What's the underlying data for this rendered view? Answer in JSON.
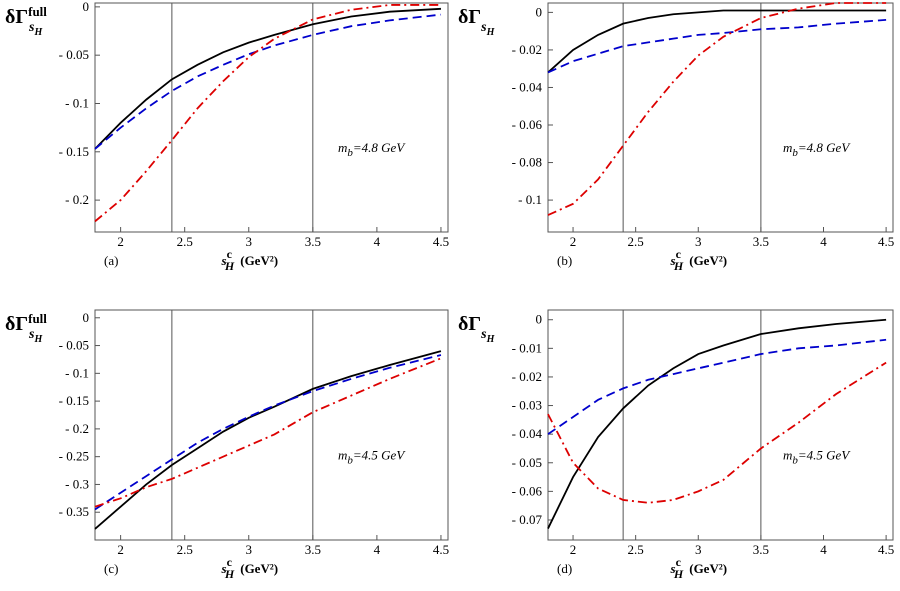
{
  "chart_data": [
    {
      "type": "line",
      "label": "(a)",
      "y_label": {
        "main": "δΓ",
        "sub": "s",
        "subsub": "H",
        "sup": "full"
      },
      "x_label": {
        "main": "s",
        "sub": "H",
        "sup": "c",
        "unit": "(GeV²)"
      },
      "annotation": {
        "main": "m",
        "sub": "b",
        "rest": "=4.8 GeV"
      },
      "xlim": [
        1.8,
        4.555
      ],
      "ylim": [
        -0.233,
        0.004
      ],
      "xticks": [
        2,
        2.5,
        3,
        3.5,
        4,
        4.5
      ],
      "yticks": [
        0,
        {
          "value": -0.05,
          "label": "- 0.05"
        },
        {
          "value": -0.1,
          "label": "- 0.1"
        },
        {
          "value": -0.15,
          "label": "- 0.15"
        },
        {
          "value": -0.2,
          "label": "- 0.2"
        }
      ],
      "vlines": [
        2.4,
        3.5
      ],
      "x": [
        1.8,
        2,
        2.2,
        2.4,
        2.6,
        2.8,
        3,
        3.2,
        3.5,
        3.8,
        4.1,
        4.5
      ],
      "series": [
        {
          "color": "#000000",
          "dash": "solid",
          "values": [
            -0.147,
            -0.12,
            -0.096,
            -0.075,
            -0.06,
            -0.047,
            -0.037,
            -0.029,
            -0.018,
            -0.01,
            -0.005,
            -0.002
          ]
        },
        {
          "color": "#0000cc",
          "dash": "dashed",
          "values": [
            -0.147,
            -0.125,
            -0.105,
            -0.087,
            -0.072,
            -0.06,
            -0.049,
            -0.04,
            -0.029,
            -0.02,
            -0.014,
            -0.008
          ]
        },
        {
          "color": "#dd0000",
          "dash": "dashdot",
          "values": [
            -0.222,
            -0.2,
            -0.17,
            -0.138,
            -0.105,
            -0.077,
            -0.052,
            -0.033,
            -0.013,
            -0.003,
            0.002,
            0.002
          ]
        }
      ]
    },
    {
      "type": "line",
      "label": "(b)",
      "y_label": {
        "main": "δΓ",
        "sub": "s",
        "subsub": "H"
      },
      "x_label": {
        "main": "s",
        "sub": "H",
        "sup": "c",
        "unit": "(GeV²)"
      },
      "annotation": {
        "main": "m",
        "sub": "b",
        "rest": "=4.8 GeV"
      },
      "xlim": [
        1.8,
        4.555
      ],
      "ylim": [
        -0.117,
        0.005
      ],
      "xticks": [
        2,
        2.5,
        3,
        3.5,
        4,
        4.5
      ],
      "yticks": [
        0,
        {
          "value": -0.02,
          "label": "- 0.02"
        },
        {
          "value": -0.04,
          "label": "- 0.04"
        },
        {
          "value": -0.06,
          "label": "- 0.06"
        },
        {
          "value": -0.08,
          "label": "- 0.08"
        },
        {
          "value": -0.1,
          "label": "- 0.1"
        }
      ],
      "vlines": [
        2.4,
        3.5
      ],
      "x": [
        1.8,
        2,
        2.2,
        2.4,
        2.6,
        2.8,
        3,
        3.2,
        3.5,
        3.8,
        4.1,
        4.5
      ],
      "series": [
        {
          "color": "#000000",
          "dash": "solid",
          "values": [
            -0.032,
            -0.02,
            -0.012,
            -0.006,
            -0.003,
            -0.001,
            0,
            0.001,
            0.001,
            0.001,
            0.001,
            0.001
          ]
        },
        {
          "color": "#0000cc",
          "dash": "dashed",
          "values": [
            -0.032,
            -0.026,
            -0.022,
            -0.018,
            -0.016,
            -0.014,
            -0.012,
            -0.011,
            -0.009,
            -0.008,
            -0.006,
            -0.004
          ]
        },
        {
          "color": "#dd0000",
          "dash": "dashdot",
          "values": [
            -0.108,
            -0.102,
            -0.089,
            -0.071,
            -0.053,
            -0.037,
            -0.023,
            -0.013,
            -0.003,
            0.002,
            0.005,
            0.005
          ]
        }
      ]
    },
    {
      "type": "line",
      "label": "(c)",
      "y_label": {
        "main": "δΓ",
        "sub": "s",
        "subsub": "H",
        "sup": "full"
      },
      "x_label": {
        "main": "s",
        "sub": "H",
        "sup": "c",
        "unit": "(GeV²)"
      },
      "annotation": {
        "main": "m",
        "sub": "b",
        "rest": "=4.5 GeV"
      },
      "xlim": [
        1.8,
        4.555
      ],
      "ylim": [
        -0.4,
        0.014
      ],
      "xticks": [
        2,
        2.5,
        3,
        3.5,
        4,
        4.5
      ],
      "yticks": [
        0,
        {
          "value": -0.05,
          "label": "- 0.05"
        },
        {
          "value": -0.1,
          "label": "- 0.1"
        },
        {
          "value": -0.15,
          "label": "- 0.15"
        },
        {
          "value": -0.2,
          "label": "- 0.2"
        },
        {
          "value": -0.25,
          "label": "- 0.25"
        },
        {
          "value": -0.3,
          "label": "- 0.3"
        },
        {
          "value": -0.35,
          "label": "- 0.35"
        }
      ],
      "vlines": [
        2.4,
        3.5
      ],
      "x": [
        1.8,
        2,
        2.2,
        2.4,
        2.6,
        2.8,
        3,
        3.2,
        3.5,
        3.8,
        4.1,
        4.5
      ],
      "series": [
        {
          "color": "#000000",
          "dash": "solid",
          "values": [
            -0.38,
            -0.34,
            -0.3,
            -0.265,
            -0.235,
            -0.205,
            -0.18,
            -0.16,
            -0.128,
            -0.105,
            -0.085,
            -0.06
          ]
        },
        {
          "color": "#0000cc",
          "dash": "dashed",
          "values": [
            -0.345,
            -0.315,
            -0.285,
            -0.255,
            -0.225,
            -0.2,
            -0.178,
            -0.158,
            -0.132,
            -0.11,
            -0.09,
            -0.067
          ]
        },
        {
          "color": "#dd0000",
          "dash": "dashdot",
          "values": [
            -0.34,
            -0.325,
            -0.305,
            -0.29,
            -0.27,
            -0.25,
            -0.23,
            -0.21,
            -0.17,
            -0.14,
            -0.11,
            -0.073
          ]
        }
      ]
    },
    {
      "type": "line",
      "label": "(d)",
      "y_label": {
        "main": "δΓ",
        "sub": "s",
        "subsub": "H"
      },
      "x_label": {
        "main": "s",
        "sub": "H",
        "sup": "c",
        "unit": "(GeV²)"
      },
      "annotation": {
        "main": "m",
        "sub": "b",
        "rest": "=4.5 GeV"
      },
      "xlim": [
        1.8,
        4.555
      ],
      "ylim": [
        -0.077,
        0.0034
      ],
      "xticks": [
        2,
        2.5,
        3,
        3.5,
        4,
        4.5
      ],
      "yticks": [
        0,
        {
          "value": -0.01,
          "label": "- 0.01"
        },
        {
          "value": -0.02,
          "label": "- 0.02"
        },
        {
          "value": -0.03,
          "label": "- 0.03"
        },
        {
          "value": -0.04,
          "label": "- 0.04"
        },
        {
          "value": -0.05,
          "label": "- 0.05"
        },
        {
          "value": -0.06,
          "label": "- 0.06"
        },
        {
          "value": -0.07,
          "label": "- 0.07"
        }
      ],
      "vlines": [
        2.4,
        3.5
      ],
      "x": [
        1.8,
        2,
        2.2,
        2.4,
        2.6,
        2.8,
        3,
        3.2,
        3.5,
        3.8,
        4.1,
        4.5
      ],
      "series": [
        {
          "color": "#000000",
          "dash": "solid",
          "values": [
            -0.073,
            -0.055,
            -0.041,
            -0.031,
            -0.023,
            -0.017,
            -0.012,
            -0.009,
            -0.005,
            -0.003,
            -0.0015,
            0
          ]
        },
        {
          "color": "#0000cc",
          "dash": "dashed",
          "values": [
            -0.04,
            -0.034,
            -0.028,
            -0.024,
            -0.021,
            -0.019,
            -0.017,
            -0.015,
            -0.012,
            -0.01,
            -0.009,
            -0.007
          ]
        },
        {
          "color": "#dd0000",
          "dash": "dashdot",
          "values": [
            -0.033,
            -0.05,
            -0.059,
            -0.063,
            -0.064,
            -0.063,
            -0.06,
            -0.056,
            -0.045,
            -0.036,
            -0.026,
            -0.015
          ]
        }
      ]
    }
  ]
}
